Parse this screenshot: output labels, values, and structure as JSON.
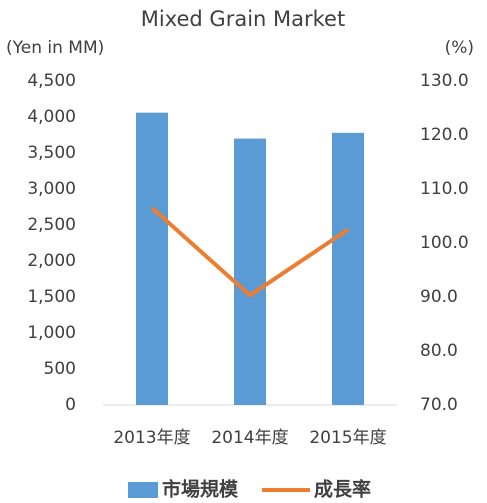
{
  "chart_data": {
    "type": "bar_line",
    "title": "Mixed Grain Market",
    "y_label": "(Yen in MM)",
    "y2_label": "(%)",
    "categories": [
      "2013年度",
      "2014年度",
      "2015年度"
    ],
    "series": [
      {
        "name": "市場規模",
        "type": "bar",
        "color": "#5b9bd5",
        "values": [
          4060,
          3700,
          3780
        ]
      },
      {
        "name": "成長率",
        "type": "line",
        "color": "#ed7d31",
        "axis": "y2",
        "values": [
          106.5,
          90.3,
          102.5
        ]
      }
    ],
    "ylim": [
      0,
      4500
    ],
    "yticks": [
      0,
      500,
      {
        "value": 1000,
        "label": "1,000"
      },
      {
        "value": 1500,
        "label": "1,500"
      },
      {
        "value": 2000,
        "label": "2,000"
      },
      {
        "value": 2500,
        "label": "2,500"
      },
      {
        "value": 3000,
        "label": "3,000"
      },
      {
        "value": 3500,
        "label": "3,500"
      },
      {
        "value": 4000,
        "label": "4,000"
      },
      {
        "value": 4500,
        "label": "4,500"
      }
    ],
    "y2lim": [
      70,
      130
    ],
    "y2ticks": [
      {
        "value": 70,
        "label": "70.0"
      },
      {
        "value": 80,
        "label": "80.0"
      },
      {
        "value": 90,
        "label": "90.0"
      },
      {
        "value": 100,
        "label": "100.0"
      },
      {
        "value": 110,
        "label": "110.0"
      },
      {
        "value": 120,
        "label": "120.0"
      },
      {
        "value": 130,
        "label": "130.0"
      }
    ],
    "legend": "bottom"
  }
}
